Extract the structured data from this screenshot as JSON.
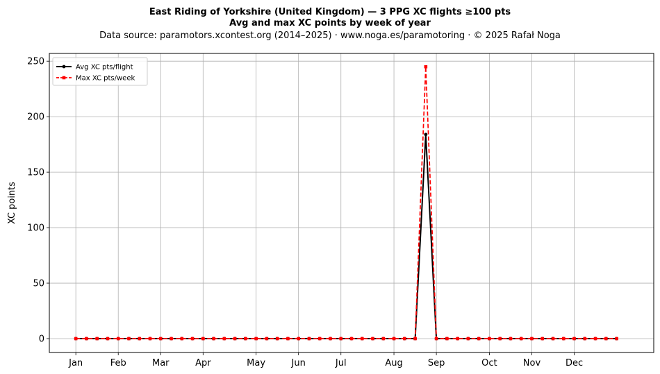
{
  "chart_data": {
    "type": "line",
    "title_line1": "East Riding of Yorkshire (United Kingdom)  —  3 PPG XC flights ≥100 pts",
    "title_line2": "Avg and max XC points by week of year",
    "subtitle": "Data source: paramotors.xcontest.org (2014–2025)  ·  www.noga.es/paramotoring  ·  © 2025 Rafał Noga",
    "xlabel": "",
    "ylabel": "XC points",
    "xlim": [
      -2.5,
      54.5
    ],
    "ylim": [
      -12.5,
      257
    ],
    "yticks": [
      0,
      50,
      100,
      150,
      200,
      250
    ],
    "xticks": [
      {
        "label": "Jan",
        "x": 0
      },
      {
        "label": "Feb",
        "x": 4
      },
      {
        "label": "Mar",
        "x": 8
      },
      {
        "label": "Apr",
        "x": 12
      },
      {
        "label": "May",
        "x": 17
      },
      {
        "label": "Jun",
        "x": 21
      },
      {
        "label": "Jul",
        "x": 25
      },
      {
        "label": "Aug",
        "x": 30
      },
      {
        "label": "Sep",
        "x": 34
      },
      {
        "label": "Oct",
        "x": 39
      },
      {
        "label": "Nov",
        "x": 43
      },
      {
        "label": "Dec",
        "x": 47
      }
    ],
    "grid": true,
    "legend_position": "upper-left",
    "x": [
      0,
      1,
      2,
      3,
      4,
      5,
      6,
      7,
      8,
      9,
      10,
      11,
      12,
      13,
      14,
      15,
      16,
      17,
      18,
      19,
      20,
      21,
      22,
      23,
      24,
      25,
      26,
      27,
      28,
      29,
      30,
      31,
      32,
      33,
      34,
      35,
      36,
      37,
      38,
      39,
      40,
      41,
      42,
      43,
      44,
      45,
      46,
      47,
      48,
      49,
      50,
      51
    ],
    "series": [
      {
        "name": "Avg XC pts/flight",
        "color": "#000000",
        "style": "solid-circle",
        "values": [
          0,
          0,
          0,
          0,
          0,
          0,
          0,
          0,
          0,
          0,
          0,
          0,
          0,
          0,
          0,
          0,
          0,
          0,
          0,
          0,
          0,
          0,
          0,
          0,
          0,
          0,
          0,
          0,
          0,
          0,
          0,
          0,
          0,
          184,
          0,
          0,
          0,
          0,
          0,
          0,
          0,
          0,
          0,
          0,
          0,
          0,
          0,
          0,
          0,
          0,
          0,
          0
        ]
      },
      {
        "name": "Max XC pts/week",
        "color": "#ff0000",
        "style": "dashed-square",
        "values": [
          0,
          0,
          0,
          0,
          0,
          0,
          0,
          0,
          0,
          0,
          0,
          0,
          0,
          0,
          0,
          0,
          0,
          0,
          0,
          0,
          0,
          0,
          0,
          0,
          0,
          0,
          0,
          0,
          0,
          0,
          0,
          0,
          0,
          245,
          0,
          0,
          0,
          0,
          0,
          0,
          0,
          0,
          0,
          0,
          0,
          0,
          0,
          0,
          0,
          0,
          0,
          0
        ]
      }
    ]
  }
}
